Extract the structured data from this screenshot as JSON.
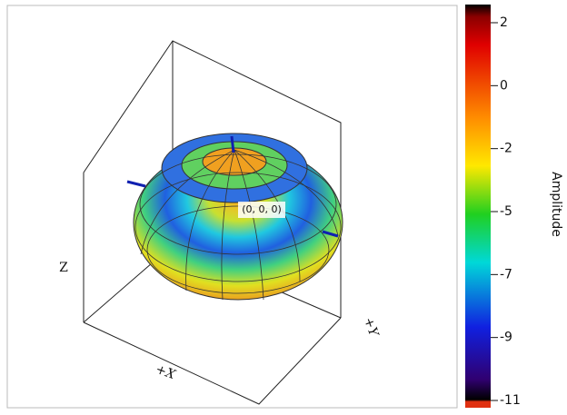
{
  "plot": {
    "origin_label": "(0, 0, 0)",
    "x_label": "+X",
    "y_label": "+Y",
    "z_label": "Z"
  },
  "colorbar": {
    "label": "Amplitude",
    "ticks": [
      "2",
      "0",
      "-2",
      "-5",
      "-7",
      "-9",
      "-11"
    ]
  }
}
